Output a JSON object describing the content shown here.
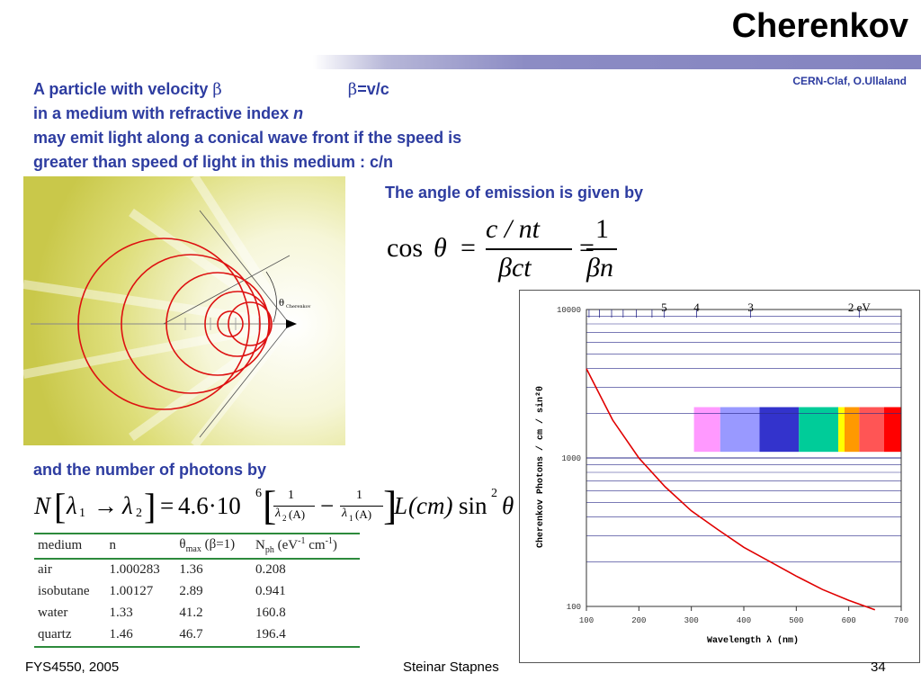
{
  "slide": {
    "title": "Cherenkov",
    "credit": "CERN-Claf, O.Ullaland"
  },
  "intro": {
    "line1_a": "A particle with velocity ",
    "line1_b": "β",
    "line1_c": "β",
    "line1_d": "=v/c",
    "line2_a": "in a medium with refractive index ",
    "line2_b": "n",
    "line3": "may emit light along a conical wave front if the speed is",
    "line4": "greater than speed of light in this medium : c/n"
  },
  "angle_text": "The angle of emission is given by",
  "angle_formula": {
    "cos": "cos",
    "theta": "θ",
    "eq": "=",
    "num": "c / nt",
    "den": "βct",
    "num2": "1",
    "den2": "βn"
  },
  "number_text": "and the number of photons by",
  "photon_formula": {
    "N": "N",
    "l1": "λ",
    "sub1": "1",
    "arrow": "→",
    "l2": "λ",
    "sub2": "2",
    "eq": "=",
    "coeff": "4.6·10",
    "exp": "6",
    "one": "1",
    "dl": "λ",
    "unitA": "(A)",
    "minus": "−",
    "L": "L",
    "cm": "(cm)",
    "sin": "sin",
    "sq": "2",
    "theta": "θ"
  },
  "diagram": {
    "theta_label": "θ",
    "theta_sub": "Cherenkov"
  },
  "media_table": {
    "headers": {
      "medium": "medium",
      "n": "n",
      "theta": "θ",
      "theta_sub": "max",
      "theta_paren": "(β=1)",
      "nph": "N",
      "nph_sub": "ph",
      "nph_unit1": " (eV",
      "nph_exp1": "-1",
      "nph_unit2": " cm",
      "nph_exp2": "-1",
      "nph_unit3": ")"
    },
    "rows": [
      {
        "medium": "air",
        "n": "1.000283",
        "theta": "1.36",
        "nph": "0.208"
      },
      {
        "medium": "isobutane",
        "n": "1.00127",
        "theta": "2.89",
        "nph": "0.941"
      },
      {
        "medium": "water",
        "n": "1.33",
        "theta": "41.2",
        "nph": "160.8"
      },
      {
        "medium": "quartz",
        "n": "1.46",
        "theta": "46.7",
        "nph": "196.4"
      }
    ]
  },
  "chart_data": {
    "type": "line",
    "xlabel": "Wavelength λ (nm)",
    "ylabel": "Cherenkov Photons / cm / sin²θ",
    "xlim": [
      100,
      700
    ],
    "ylim": [
      100,
      10000
    ],
    "yscale": "log",
    "xticks": [
      100,
      200,
      300,
      400,
      500,
      600,
      700
    ],
    "yticks": [
      100,
      1000,
      10000
    ],
    "top_ticks": [
      {
        "label": "5",
        "x": 248
      },
      {
        "label": "4",
        "x": 310
      },
      {
        "label": "3",
        "x": 413
      },
      {
        "label": "2 eV",
        "x": 620
      }
    ],
    "series": [
      {
        "color": "#e00000",
        "x": [
          100,
          150,
          200,
          250,
          300,
          350,
          400,
          450,
          500,
          550,
          600,
          650
        ],
        "y": [
          4000,
          1800,
          1000,
          640,
          440,
          330,
          250,
          200,
          160,
          130,
          110,
          95
        ]
      }
    ],
    "spectrum_colors": [
      "#ff99ff",
      "#9999ff",
      "#3333cc",
      "#00cc99",
      "#ffff00",
      "#ff9900",
      "#ff5555",
      "#ff0000"
    ],
    "spectrum_bounds": [
      305,
      355,
      430,
      505,
      580,
      592,
      620,
      667,
      700
    ]
  },
  "footer": {
    "left": "FYS4550, 2005",
    "center": "Steinar Stapnes",
    "right": "34"
  }
}
